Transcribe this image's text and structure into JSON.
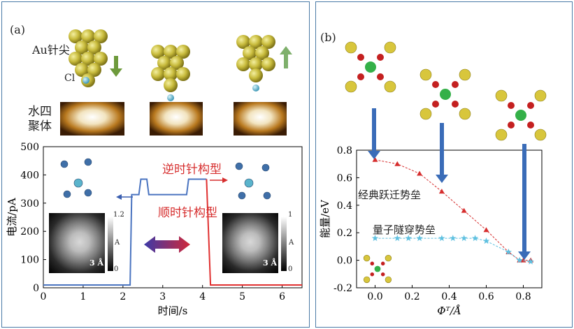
{
  "panel_a": {
    "label": "(a)",
    "tip_label": "Au针尖",
    "cl_label": "Cl",
    "tetramer_label_line1": "水四",
    "tetramer_label_line2": "聚体",
    "inset_left": {
      "scale_label": "3 Å",
      "bar_max": "1.2",
      "bar_min": "0",
      "bar_unit": "A"
    },
    "inset_right": {
      "scale_label": "3 Å",
      "bar_max": "1",
      "bar_min": "0",
      "bar_unit": "A"
    },
    "anticlockwise_label": "逆时针构型",
    "clockwise_label": "顺时针构型"
  },
  "panel_b": {
    "label": "(b)",
    "classical_label": "经典跃迁势垒",
    "quantum_label": "量子隧穿势垒"
  },
  "chart_data": [
    {
      "type": "line",
      "xlabel": "时间/s",
      "ylabel": "电流/pA",
      "xlim": [
        0,
        6.5
      ],
      "ylim": [
        0,
        500
      ],
      "xticks": [
        0,
        1,
        2,
        3,
        4,
        5,
        6
      ],
      "yticks": [
        0,
        100,
        200,
        300,
        400,
        500
      ],
      "series": [
        {
          "color": "#4a74c0",
          "x": [
            0,
            2.18,
            2.22,
            2.4,
            2.45,
            2.6,
            2.65,
            3.6,
            3.65,
            4.1
          ],
          "y": [
            10,
            10,
            330,
            330,
            385,
            385,
            330,
            330,
            385,
            385
          ]
        },
        {
          "color": "#e03030",
          "x": [
            4.1,
            4.2,
            6.5
          ],
          "y": [
            385,
            10,
            10
          ]
        }
      ],
      "grid": false
    },
    {
      "type": "line",
      "xlabel": "Φᵀ/Å",
      "ylabel": "能量/eV",
      "xlim": [
        -0.1,
        0.9
      ],
      "ylim": [
        -0.2,
        0.8
      ],
      "xticks": [
        0.0,
        0.2,
        0.4,
        0.6,
        0.8
      ],
      "yticks": [
        -0.2,
        0.0,
        0.2,
        0.4,
        0.6,
        0.8
      ],
      "series": [
        {
          "marker": "triangle",
          "color": "#d62e2e",
          "x": [
            0.0,
            0.12,
            0.24,
            0.36,
            0.48,
            0.6,
            0.72,
            0.78,
            0.8,
            0.84
          ],
          "y": [
            0.73,
            0.7,
            0.63,
            0.5,
            0.36,
            0.22,
            0.06,
            0.0,
            0.0,
            0.0
          ]
        },
        {
          "marker": "star",
          "color": "#5ec0e0",
          "x": [
            0.0,
            0.12,
            0.18,
            0.24,
            0.36,
            0.42,
            0.48,
            0.54,
            0.6,
            0.72,
            0.78,
            0.84
          ],
          "y": [
            0.16,
            0.16,
            0.16,
            0.16,
            0.16,
            0.16,
            0.16,
            0.16,
            0.14,
            0.06,
            0.0,
            -0.01
          ]
        }
      ],
      "grid": false
    }
  ]
}
